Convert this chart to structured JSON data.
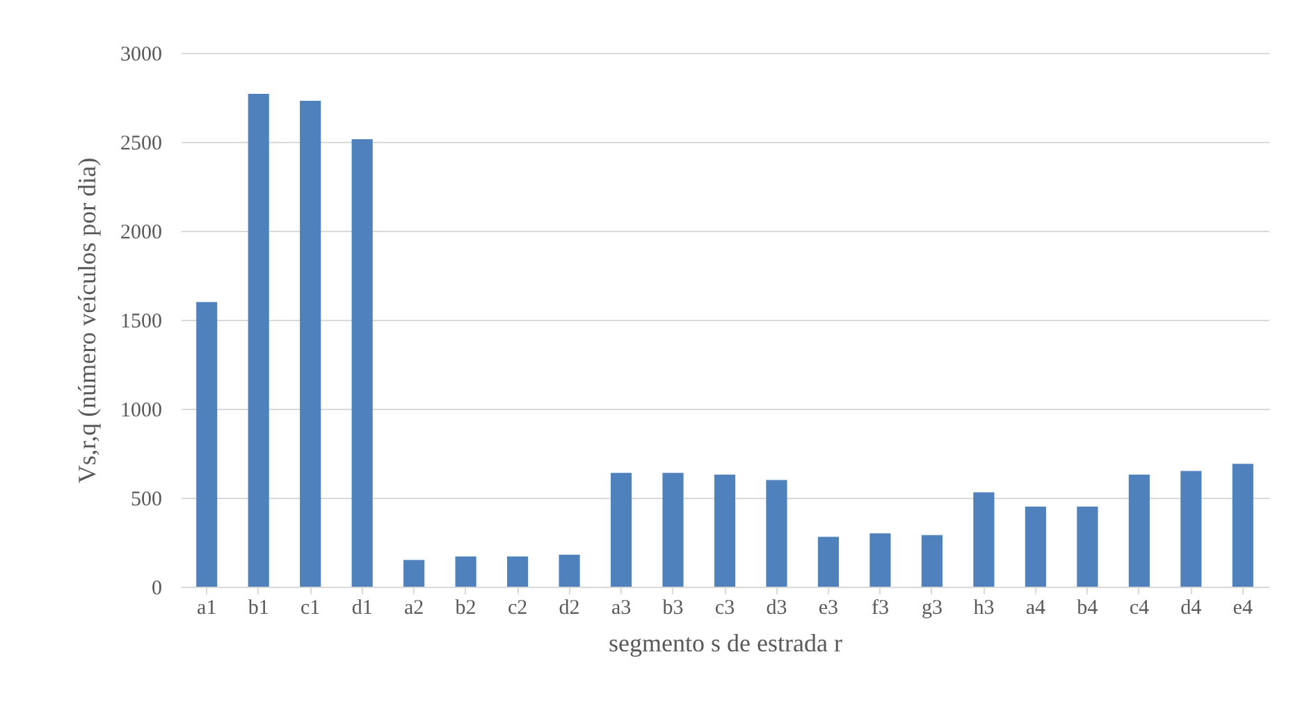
{
  "chart_data": {
    "type": "bar",
    "xlabel": "segmento s de estrada r",
    "ylabel": "Vs,r,q (número veículos por dia)",
    "categories": [
      "a1",
      "b1",
      "c1",
      "d1",
      "a2",
      "b2",
      "c2",
      "d2",
      "a3",
      "b3",
      "c3",
      "d3",
      "e3",
      "f3",
      "g3",
      "h3",
      "a4",
      "b4",
      "c4",
      "d4",
      "e4"
    ],
    "values": [
      1600,
      2770,
      2730,
      2515,
      150,
      170,
      170,
      180,
      640,
      640,
      630,
      600,
      280,
      300,
      290,
      530,
      450,
      450,
      630,
      650,
      690
    ],
    "color": "#4f81bd",
    "ylim": [
      0,
      3000
    ],
    "yticks": [
      0,
      500,
      1000,
      1500,
      2000,
      2500,
      3000
    ],
    "grid": "y"
  }
}
